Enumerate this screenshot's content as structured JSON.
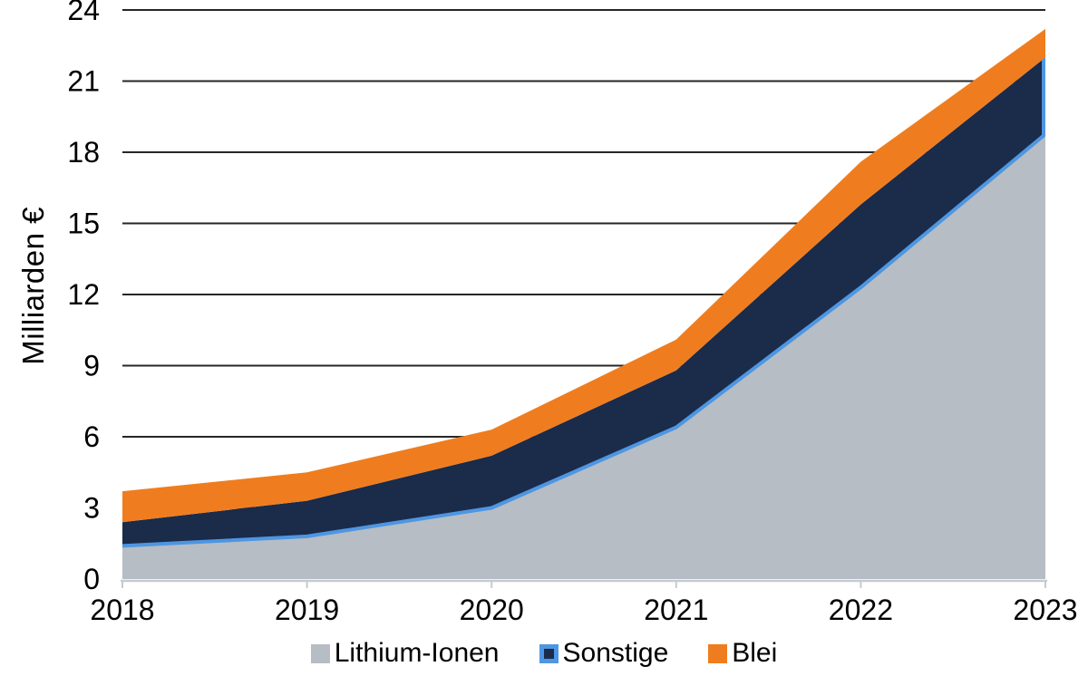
{
  "chart_data": {
    "type": "area",
    "stacked": true,
    "title": "",
    "xlabel": "",
    "ylabel": "Milliarden €",
    "categories": [
      "2018",
      "2019",
      "2020",
      "2021",
      "2022",
      "2023"
    ],
    "series": [
      {
        "name": "Lithium-Ionen",
        "values": [
          1.4,
          1.8,
          3.0,
          6.4,
          12.3,
          18.7
        ],
        "fill": "#b6bdc4",
        "border": null
      },
      {
        "name": "Sonstige",
        "values": [
          1.0,
          1.5,
          2.2,
          2.4,
          3.5,
          3.3
        ],
        "fill": "#1b2b4a",
        "border": "#4d96e2"
      },
      {
        "name": "Blei",
        "values": [
          1.3,
          1.2,
          1.1,
          1.3,
          1.8,
          1.2
        ],
        "fill": "#ef7d1f",
        "border": null
      }
    ],
    "ylim": [
      0,
      24
    ],
    "yticks": [
      0,
      3,
      6,
      9,
      12,
      15,
      18,
      21,
      24
    ],
    "grid": true,
    "gridline_color": "#262626",
    "axis_color": "#c6cbd0",
    "text_color": "#000000",
    "legend_position": "bottom"
  }
}
